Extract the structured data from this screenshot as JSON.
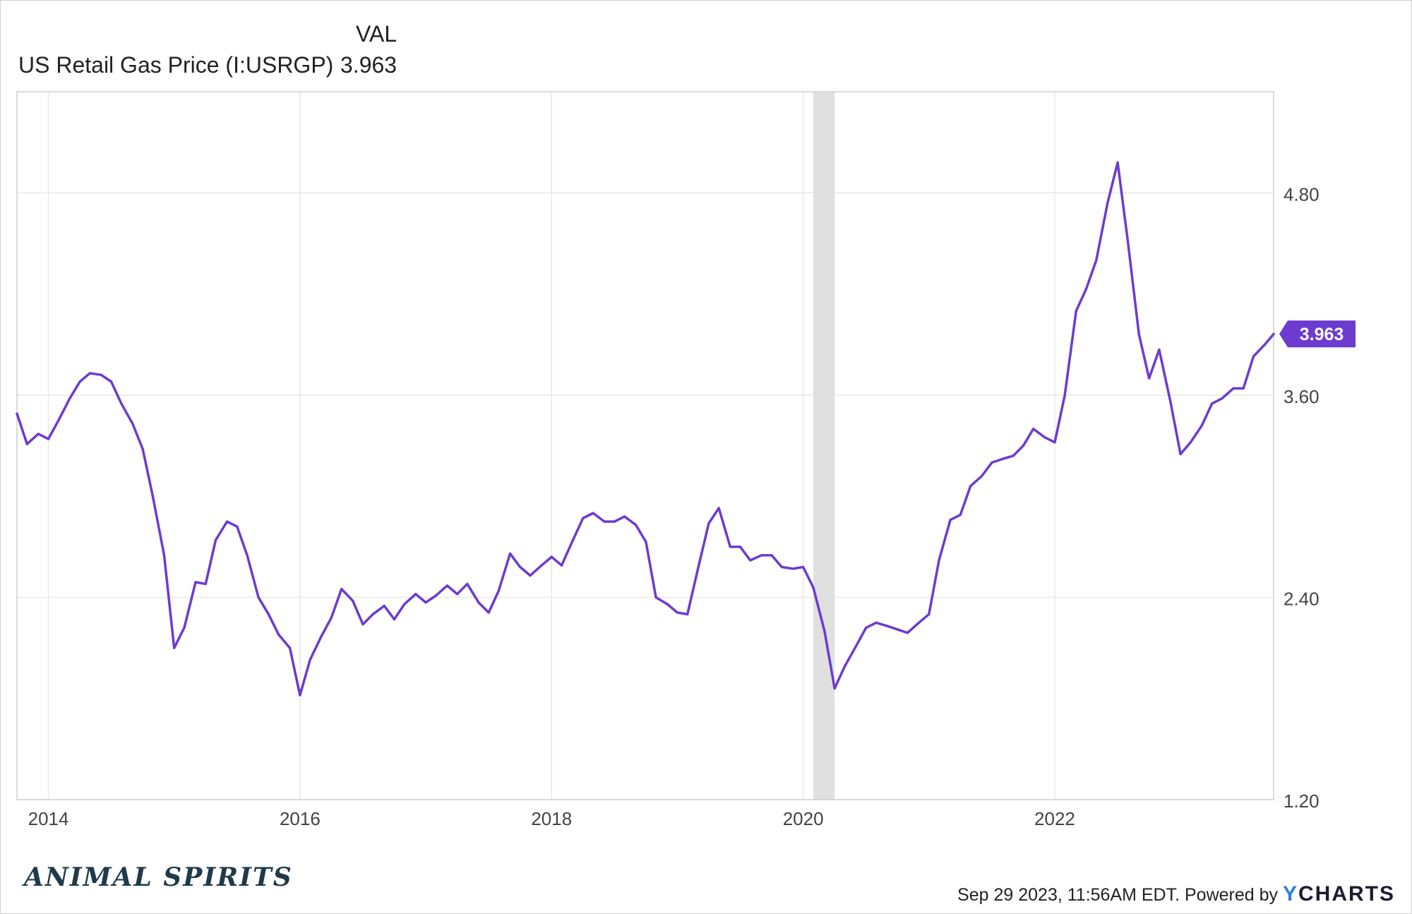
{
  "legend": {
    "header": "VAL",
    "series_name": "US Retail Gas Price (I:USRGP)",
    "series_value": "3.963"
  },
  "brand": {
    "logo_text": "ANIMAL SPIRITS"
  },
  "footer": {
    "timestamp_text": "Sep 29 2023, 11:56AM EDT. Powered by",
    "ycharts_y": "Y",
    "ycharts_rest": "CHARTS"
  },
  "colors": {
    "series": "#6c3bcf",
    "recession": "#e0e0e0",
    "grid": "#e8e8e8"
  },
  "chart_data": {
    "type": "line",
    "title": "",
    "xlabel": "",
    "ylabel": "",
    "x_range": [
      2013.75,
      2023.74
    ],
    "ylim": [
      1.2,
      5.4
    ],
    "y_ticks": [
      1.2,
      2.4,
      3.6,
      4.8
    ],
    "y_tick_labels": [
      "1.20",
      "2.40",
      "3.60",
      "4.80"
    ],
    "x_ticks": [
      2014,
      2016,
      2018,
      2020,
      2022
    ],
    "x_tick_labels": [
      "2014",
      "2016",
      "2018",
      "2020",
      "2022"
    ],
    "grid": true,
    "y_axis_side": "right",
    "recession_band": [
      2020.08,
      2020.25
    ],
    "last_value_label": "3.963",
    "series": [
      {
        "name": "US Retail Gas Price (I:USRGP)",
        "x": [
          2013.75,
          2013.83,
          2013.92,
          2014.0,
          2014.08,
          2014.17,
          2014.25,
          2014.33,
          2014.42,
          2014.5,
          2014.58,
          2014.67,
          2014.75,
          2014.83,
          2014.92,
          2015.0,
          2015.08,
          2015.17,
          2015.25,
          2015.33,
          2015.42,
          2015.5,
          2015.58,
          2015.67,
          2015.75,
          2015.83,
          2015.92,
          2016.0,
          2016.08,
          2016.17,
          2016.25,
          2016.33,
          2016.42,
          2016.5,
          2016.58,
          2016.67,
          2016.75,
          2016.83,
          2016.92,
          2017.0,
          2017.08,
          2017.17,
          2017.25,
          2017.33,
          2017.42,
          2017.5,
          2017.58,
          2017.67,
          2017.75,
          2017.83,
          2017.92,
          2018.0,
          2018.08,
          2018.17,
          2018.25,
          2018.33,
          2018.42,
          2018.5,
          2018.58,
          2018.67,
          2018.75,
          2018.83,
          2018.92,
          2019.0,
          2019.08,
          2019.17,
          2019.25,
          2019.33,
          2019.42,
          2019.5,
          2019.58,
          2019.67,
          2019.75,
          2019.83,
          2019.92,
          2020.0,
          2020.08,
          2020.17,
          2020.25,
          2020.33,
          2020.42,
          2020.5,
          2020.58,
          2020.67,
          2020.75,
          2020.83,
          2020.92,
          2021.0,
          2021.08,
          2021.17,
          2021.25,
          2021.33,
          2021.42,
          2021.5,
          2021.58,
          2021.67,
          2021.75,
          2021.83,
          2021.92,
          2022.0,
          2022.08,
          2022.17,
          2022.25,
          2022.33,
          2022.42,
          2022.5,
          2022.58,
          2022.67,
          2022.75,
          2022.83,
          2022.92,
          2023.0,
          2023.08,
          2023.17,
          2023.25,
          2023.33,
          2023.42,
          2023.5,
          2023.58,
          2023.67,
          2023.74
        ],
        "values": [
          3.49,
          3.31,
          3.37,
          3.34,
          3.45,
          3.58,
          3.68,
          3.73,
          3.72,
          3.68,
          3.55,
          3.43,
          3.28,
          3.0,
          2.65,
          2.1,
          2.22,
          2.49,
          2.48,
          2.74,
          2.85,
          2.82,
          2.65,
          2.4,
          2.3,
          2.18,
          2.1,
          1.82,
          2.03,
          2.17,
          2.28,
          2.45,
          2.38,
          2.24,
          2.3,
          2.35,
          2.27,
          2.36,
          2.42,
          2.37,
          2.41,
          2.47,
          2.42,
          2.48,
          2.37,
          2.31,
          2.44,
          2.66,
          2.58,
          2.53,
          2.59,
          2.64,
          2.59,
          2.74,
          2.87,
          2.9,
          2.85,
          2.85,
          2.88,
          2.83,
          2.73,
          2.4,
          2.36,
          2.31,
          2.3,
          2.59,
          2.84,
          2.93,
          2.7,
          2.7,
          2.62,
          2.65,
          2.65,
          2.58,
          2.57,
          2.58,
          2.46,
          2.2,
          1.86,
          1.99,
          2.11,
          2.22,
          2.25,
          2.23,
          2.21,
          2.19,
          2.25,
          2.3,
          2.62,
          2.86,
          2.89,
          3.06,
          3.12,
          3.2,
          3.22,
          3.24,
          3.3,
          3.4,
          3.35,
          3.32,
          3.6,
          4.1,
          4.23,
          4.4,
          4.74,
          4.98,
          4.52,
          3.96,
          3.7,
          3.87,
          3.56,
          3.25,
          3.32,
          3.42,
          3.55,
          3.58,
          3.64,
          3.64,
          3.83,
          3.9,
          3.963
        ]
      }
    ]
  }
}
